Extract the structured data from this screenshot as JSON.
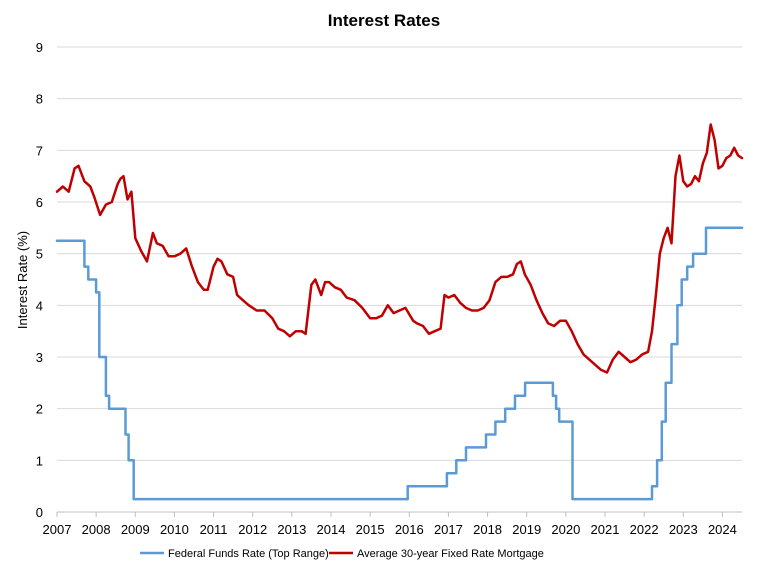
{
  "chart_data": {
    "type": "line",
    "title": "Interest Rates",
    "xlabel": "",
    "ylabel": "Interest Rate (%)",
    "xlim": [
      2007,
      2024.5
    ],
    "ylim": [
      0,
      9
    ],
    "y_ticks": [
      "0",
      "1",
      "2",
      "3",
      "4",
      "5",
      "6",
      "7",
      "8",
      "9"
    ],
    "x_ticks": [
      "2007",
      "2008",
      "2009",
      "2010",
      "2011",
      "2012",
      "2013",
      "2014",
      "2015",
      "2016",
      "2017",
      "2018",
      "2019",
      "2020",
      "2021",
      "2022",
      "2023",
      "2024"
    ],
    "grid": "horizontal",
    "legend_position": "bottom",
    "series": [
      {
        "name": "Federal Funds Rate (Top Range)",
        "color": "#5b9bd5",
        "step": true,
        "x": [
          2007.0,
          2007.6,
          2007.7,
          2007.8,
          2007.9,
          2008.0,
          2008.08,
          2008.2,
          2008.25,
          2008.33,
          2008.7,
          2008.75,
          2008.83,
          2008.92,
          2008.96,
          2015.96,
          2016.96,
          2017.2,
          2017.45,
          2017.96,
          2018.2,
          2018.45,
          2018.7,
          2018.96,
          2019.58,
          2019.67,
          2019.75,
          2019.83,
          2020.17,
          2022.2,
          2022.33,
          2022.45,
          2022.55,
          2022.7,
          2022.85,
          2022.96,
          2023.1,
          2023.25,
          2023.58,
          2024.5
        ],
        "values": [
          5.25,
          5.25,
          4.75,
          4.5,
          4.5,
          4.25,
          3.0,
          3.0,
          2.25,
          2.0,
          2.0,
          1.5,
          1.0,
          1.0,
          0.25,
          0.5,
          0.75,
          1.0,
          1.25,
          1.5,
          1.75,
          2.0,
          2.25,
          2.5,
          2.5,
          2.25,
          2.0,
          1.75,
          0.25,
          0.5,
          1.0,
          1.75,
          2.5,
          3.25,
          4.0,
          4.5,
          4.75,
          5.0,
          5.5,
          5.5
        ]
      },
      {
        "name": "Average 30-year Fixed Rate Mortgage",
        "color": "#c00000",
        "x": [
          2007.0,
          2007.15,
          2007.3,
          2007.45,
          2007.55,
          2007.7,
          2007.85,
          2007.95,
          2008.1,
          2008.25,
          2008.4,
          2008.55,
          2008.62,
          2008.7,
          2008.8,
          2008.9,
          2009.0,
          2009.15,
          2009.3,
          2009.45,
          2009.55,
          2009.7,
          2009.85,
          2010.0,
          2010.15,
          2010.3,
          2010.45,
          2010.6,
          2010.75,
          2010.85,
          2011.0,
          2011.1,
          2011.2,
          2011.35,
          2011.5,
          2011.6,
          2011.75,
          2011.9,
          2012.1,
          2012.3,
          2012.5,
          2012.65,
          2012.8,
          2012.95,
          2013.1,
          2013.25,
          2013.35,
          2013.5,
          2013.6,
          2013.75,
          2013.85,
          2013.95,
          2014.1,
          2014.25,
          2014.4,
          2014.6,
          2014.8,
          2015.0,
          2015.15,
          2015.3,
          2015.45,
          2015.6,
          2015.75,
          2015.9,
          2016.1,
          2016.2,
          2016.35,
          2016.5,
          2016.65,
          2016.8,
          2016.9,
          2017.0,
          2017.15,
          2017.3,
          2017.45,
          2017.6,
          2017.75,
          2017.9,
          2018.05,
          2018.2,
          2018.35,
          2018.5,
          2018.65,
          2018.75,
          2018.85,
          2018.95,
          2019.1,
          2019.25,
          2019.4,
          2019.55,
          2019.7,
          2019.85,
          2020.0,
          2020.15,
          2020.3,
          2020.45,
          2020.6,
          2020.75,
          2020.9,
          2021.05,
          2021.2,
          2021.35,
          2021.5,
          2021.65,
          2021.8,
          2021.95,
          2022.1,
          2022.2,
          2022.3,
          2022.4,
          2022.5,
          2022.6,
          2022.7,
          2022.8,
          2022.9,
          2023.0,
          2023.1,
          2023.2,
          2023.3,
          2023.4,
          2023.5,
          2023.6,
          2023.7,
          2023.8,
          2023.9,
          2024.0,
          2024.1,
          2024.2,
          2024.3,
          2024.4,
          2024.5
        ],
        "values": [
          6.2,
          6.3,
          6.2,
          6.65,
          6.7,
          6.4,
          6.3,
          6.1,
          5.75,
          5.95,
          6.0,
          6.35,
          6.45,
          6.5,
          6.05,
          6.2,
          5.3,
          5.05,
          4.85,
          5.4,
          5.2,
          5.15,
          4.95,
          4.95,
          5.0,
          5.1,
          4.75,
          4.45,
          4.3,
          4.3,
          4.75,
          4.9,
          4.85,
          4.6,
          4.55,
          4.2,
          4.1,
          4.0,
          3.9,
          3.9,
          3.75,
          3.55,
          3.5,
          3.4,
          3.5,
          3.5,
          3.45,
          4.4,
          4.5,
          4.2,
          4.45,
          4.45,
          4.35,
          4.3,
          4.15,
          4.1,
          3.95,
          3.75,
          3.75,
          3.8,
          4.0,
          3.85,
          3.9,
          3.95,
          3.7,
          3.65,
          3.6,
          3.45,
          3.5,
          3.55,
          4.2,
          4.15,
          4.2,
          4.05,
          3.95,
          3.9,
          3.9,
          3.95,
          4.1,
          4.45,
          4.55,
          4.55,
          4.6,
          4.8,
          4.85,
          4.6,
          4.4,
          4.1,
          3.85,
          3.65,
          3.6,
          3.7,
          3.7,
          3.5,
          3.25,
          3.05,
          2.95,
          2.85,
          2.75,
          2.7,
          2.95,
          3.1,
          3.0,
          2.9,
          2.95,
          3.05,
          3.1,
          3.5,
          4.2,
          5.0,
          5.3,
          5.5,
          5.2,
          6.5,
          6.9,
          6.4,
          6.3,
          6.35,
          6.5,
          6.4,
          6.75,
          6.95,
          7.5,
          7.2,
          6.65,
          6.7,
          6.85,
          6.9,
          7.05,
          6.9,
          6.85
        ]
      }
    ]
  }
}
